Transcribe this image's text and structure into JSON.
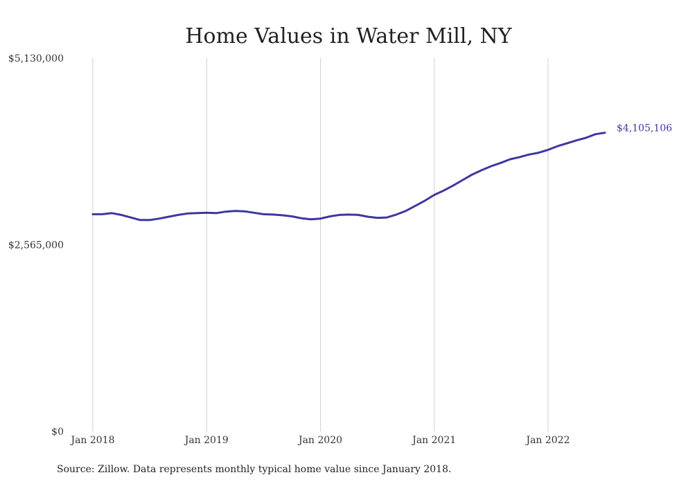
{
  "chart_data": {
    "type": "line",
    "title": "Home Values in Water Mill, NY",
    "xlabel": "",
    "ylabel": "",
    "ylim": [
      0,
      5130000
    ],
    "y_ticks": [
      "$0",
      "$2,565,000",
      "$5,130,000"
    ],
    "x_ticks": [
      "Jan 2018",
      "Jan 2019",
      "Jan 2020",
      "Jan 2021",
      "Jan 2022"
    ],
    "grid": "vertical",
    "line_color": "#3d37a0",
    "end_label": "$4,105,106",
    "series": [
      {
        "x": [
          "2018-01",
          "2018-02",
          "2018-03",
          "2018-04",
          "2018-05",
          "2018-06",
          "2018-07",
          "2018-08",
          "2018-09",
          "2018-10",
          "2018-11",
          "2018-12",
          "2019-01",
          "2019-02",
          "2019-03",
          "2019-04",
          "2019-05",
          "2019-06",
          "2019-07",
          "2019-08",
          "2019-09",
          "2019-10",
          "2019-11",
          "2019-12",
          "2020-01",
          "2020-02",
          "2020-03",
          "2020-04",
          "2020-05",
          "2020-06",
          "2020-07",
          "2020-08",
          "2020-09",
          "2020-10",
          "2020-11",
          "2020-12",
          "2021-01",
          "2021-02",
          "2021-03",
          "2021-04",
          "2021-05",
          "2021-06",
          "2021-07",
          "2021-08",
          "2021-09",
          "2021-10",
          "2021-11",
          "2021-12",
          "2022-01",
          "2022-02",
          "2022-03",
          "2022-04",
          "2022-05",
          "2022-06",
          "2022-07"
        ],
        "values": [
          2985000,
          2985000,
          3000000,
          2975000,
          2940000,
          2905000,
          2905000,
          2925000,
          2950000,
          2975000,
          2995000,
          3000000,
          3005000,
          3000000,
          3020000,
          3030000,
          3025000,
          3005000,
          2985000,
          2980000,
          2970000,
          2955000,
          2930000,
          2915000,
          2925000,
          2955000,
          2975000,
          2980000,
          2975000,
          2950000,
          2935000,
          2940000,
          2980000,
          3030000,
          3100000,
          3170000,
          3250000,
          3310000,
          3380000,
          3455000,
          3530000,
          3590000,
          3645000,
          3690000,
          3740000,
          3770000,
          3805000,
          3830000,
          3870000,
          3920000,
          3960000,
          4000000,
          4035000,
          4085000,
          4105106
        ]
      }
    ]
  },
  "footer": {
    "source": "Source: Zillow. Data represents monthly typical home value since January 2018."
  }
}
